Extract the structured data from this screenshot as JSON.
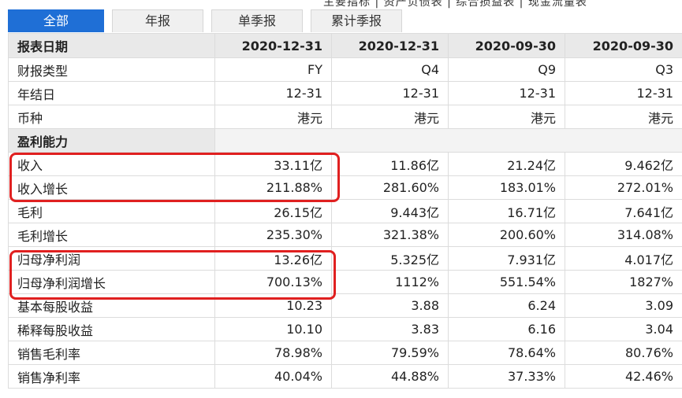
{
  "top_links": "主要指标 | 资产负债表 | 综合损益表 | 现金流量表",
  "tabs": [
    {
      "label": "全部",
      "active": true
    },
    {
      "label": "年报",
      "active": false
    },
    {
      "label": "单季报",
      "active": false
    },
    {
      "label": "累计季报",
      "active": false
    }
  ],
  "header": [
    "报表日期",
    "2020-12-31",
    "2020-12-31",
    "2020-09-30",
    "2020-09-30"
  ],
  "rows_top": [
    {
      "label": "财报类型",
      "values": [
        "FY",
        "Q4",
        "Q9",
        "Q3"
      ]
    },
    {
      "label": "年结日",
      "values": [
        "12-31",
        "12-31",
        "12-31",
        "12-31"
      ]
    },
    {
      "label": "币种",
      "values": [
        "港元",
        "港元",
        "港元",
        "港元"
      ]
    }
  ],
  "section_title": "盈利能力",
  "rows_profit": [
    {
      "label": "收入",
      "values": [
        "33.11亿",
        "11.86亿",
        "21.24亿",
        "9.462亿"
      ]
    },
    {
      "label": "收入增长",
      "values": [
        "211.88%",
        "281.60%",
        "183.01%",
        "272.01%"
      ]
    },
    {
      "label": "毛利",
      "values": [
        "26.15亿",
        "9.443亿",
        "16.71亿",
        "7.641亿"
      ]
    },
    {
      "label": "毛利增长",
      "values": [
        "235.30%",
        "321.38%",
        "200.60%",
        "314.08%"
      ]
    },
    {
      "label": "归母净利润",
      "values": [
        "13.26亿",
        "5.325亿",
        "7.931亿",
        "4.017亿"
      ]
    },
    {
      "label": "归母净利润增长",
      "values": [
        "700.13%",
        "1112%",
        "551.54%",
        "1827%"
      ]
    },
    {
      "label": "基本每股收益",
      "values": [
        "10.23",
        "3.88",
        "6.24",
        "3.09"
      ]
    },
    {
      "label": "稀释每股收益",
      "values": [
        "10.10",
        "3.83",
        "6.16",
        "3.04"
      ]
    },
    {
      "label": "销售毛利率",
      "values": [
        "78.98%",
        "79.59%",
        "78.64%",
        "80.76%"
      ]
    },
    {
      "label": "销售净利率",
      "values": [
        "40.04%",
        "44.88%",
        "37.33%",
        "42.46%"
      ]
    }
  ],
  "colors": {
    "tab_active": "#1f6fd6",
    "highlight": "#e02020",
    "header_bg": "#e9e9e9"
  }
}
